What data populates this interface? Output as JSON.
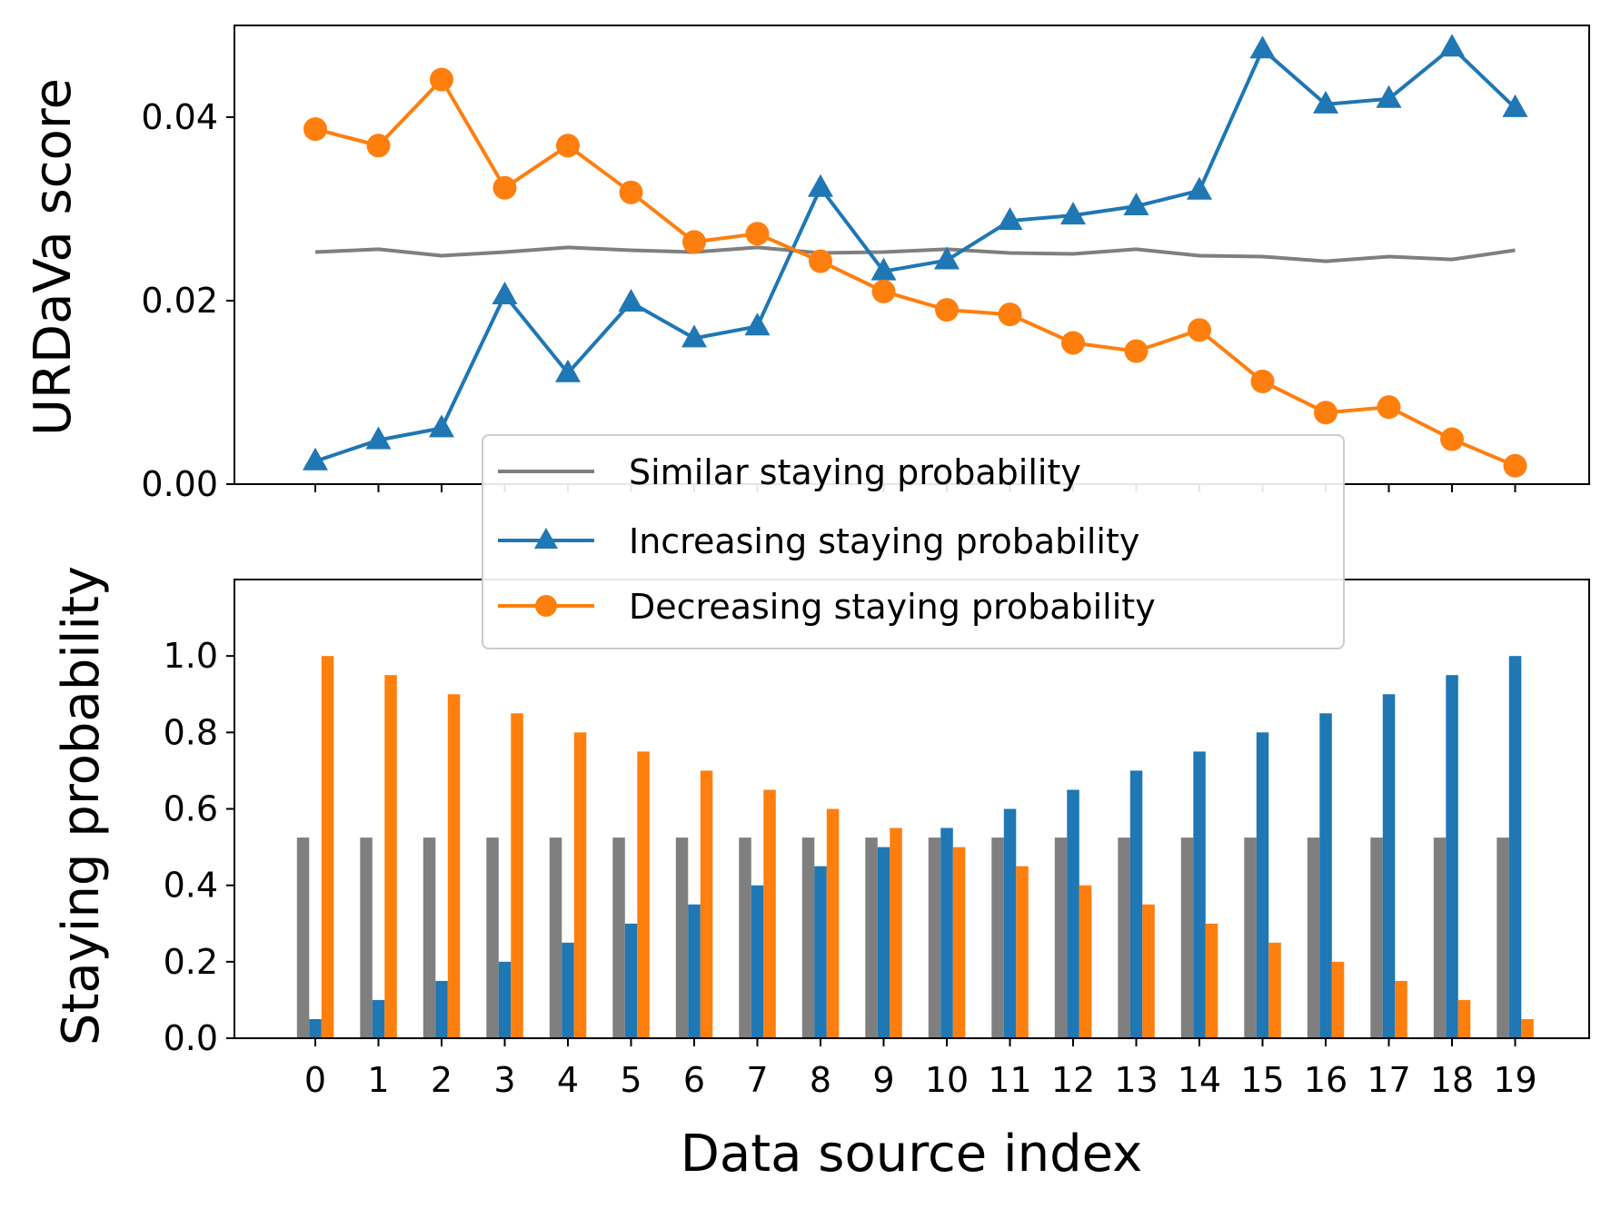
{
  "chart_data": [
    {
      "type": "line",
      "ylabel": "URDaVa score",
      "xlabel": "",
      "x": [
        0,
        1,
        2,
        3,
        4,
        5,
        6,
        7,
        8,
        9,
        10,
        11,
        12,
        13,
        14,
        15,
        16,
        17,
        18,
        19
      ],
      "ylim": [
        0.0,
        0.05
      ],
      "yticks": [
        0.0,
        0.02,
        0.04
      ],
      "ytick_labels": [
        "0.00",
        "0.02",
        "0.04"
      ],
      "series": [
        {
          "name": "Similar staying probability",
          "color": "#7f7f7f",
          "marker": "none",
          "values": [
            0.0253,
            0.0256,
            0.0249,
            0.0253,
            0.0258,
            0.0255,
            0.0253,
            0.0258,
            0.0252,
            0.0253,
            0.0256,
            0.0252,
            0.0251,
            0.0256,
            0.0249,
            0.0248,
            0.0243,
            0.0248,
            0.0245,
            0.0255
          ]
        },
        {
          "name": "Increasing staying probability",
          "color": "#1f77b4",
          "marker": "triangle",
          "values": [
            0.0025,
            0.0048,
            0.0061,
            0.0206,
            0.0121,
            0.0198,
            0.0159,
            0.0172,
            0.0323,
            0.0232,
            0.0244,
            0.0287,
            0.0293,
            0.0303,
            0.032,
            0.0474,
            0.0414,
            0.042,
            0.0476,
            0.041
          ]
        },
        {
          "name": "Decreasing staying probability",
          "color": "#ff7f0e",
          "marker": "circle",
          "values": [
            0.0387,
            0.0369,
            0.0441,
            0.0323,
            0.0369,
            0.0318,
            0.0264,
            0.0273,
            0.0243,
            0.021,
            0.019,
            0.0185,
            0.0154,
            0.0145,
            0.0168,
            0.0112,
            0.0078,
            0.0084,
            0.0049,
            0.002
          ]
        }
      ],
      "legend": "lower-center"
    },
    {
      "type": "bar",
      "xlabel": "Data source index",
      "ylabel": "Staying probability",
      "categories": [
        "0",
        "1",
        "2",
        "3",
        "4",
        "5",
        "6",
        "7",
        "8",
        "9",
        "10",
        "11",
        "12",
        "13",
        "14",
        "15",
        "16",
        "17",
        "18",
        "19"
      ],
      "ylim": [
        0.0,
        1.2
      ],
      "yticks": [
        0.0,
        0.2,
        0.4,
        0.6,
        0.8,
        1.0
      ],
      "ytick_labels": [
        "0.0",
        "0.2",
        "0.4",
        "0.6",
        "0.8",
        "1.0"
      ],
      "series": [
        {
          "name": "Similar staying probability",
          "color": "#7f7f7f",
          "values": [
            0.525,
            0.525,
            0.525,
            0.525,
            0.525,
            0.525,
            0.525,
            0.525,
            0.525,
            0.525,
            0.525,
            0.525,
            0.525,
            0.525,
            0.525,
            0.525,
            0.525,
            0.525,
            0.525,
            0.525
          ]
        },
        {
          "name": "Increasing staying probability",
          "color": "#1f77b4",
          "values": [
            0.05,
            0.1,
            0.15,
            0.2,
            0.25,
            0.3,
            0.35,
            0.4,
            0.45,
            0.5,
            0.55,
            0.6,
            0.65,
            0.7,
            0.75,
            0.8,
            0.85,
            0.9,
            0.95,
            1.0
          ]
        },
        {
          "name": "Decreasing staying probability",
          "color": "#ff7f0e",
          "values": [
            1.0,
            0.95,
            0.9,
            0.85,
            0.8,
            0.75,
            0.7,
            0.65,
            0.6,
            0.55,
            0.5,
            0.45,
            0.4,
            0.35,
            0.3,
            0.25,
            0.2,
            0.15,
            0.1,
            0.05
          ]
        }
      ]
    }
  ]
}
